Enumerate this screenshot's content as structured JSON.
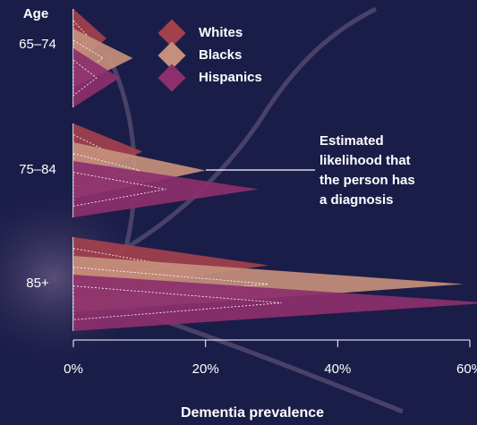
{
  "chart_data": {
    "type": "triangle",
    "x_label": "Dementia prevalence",
    "y_label": "Age",
    "categories": [
      "65–74",
      "75–84",
      "85+"
    ],
    "series": [
      {
        "name": "Whites",
        "color": "#a3404c",
        "values": [
          5,
          10.5,
          29.5
        ]
      },
      {
        "name": "Blacks",
        "color": "#c58f7c",
        "values": [
          9,
          20,
          59
        ]
      },
      {
        "name": "Hispanics",
        "color": "#8c2f6c",
        "values": [
          7,
          28,
          63
        ]
      }
    ],
    "xlim": [
      0,
      60
    ],
    "xticks": [
      {
        "value": 0,
        "label": "0%"
      },
      {
        "value": 20,
        "label": "20%"
      },
      {
        "value": 40,
        "label": "40%"
      },
      {
        "value": 60,
        "label": "60%"
      }
    ],
    "annotation": [
      "Estimated",
      "likelihood that",
      "the person has",
      "a diagnosis"
    ]
  }
}
